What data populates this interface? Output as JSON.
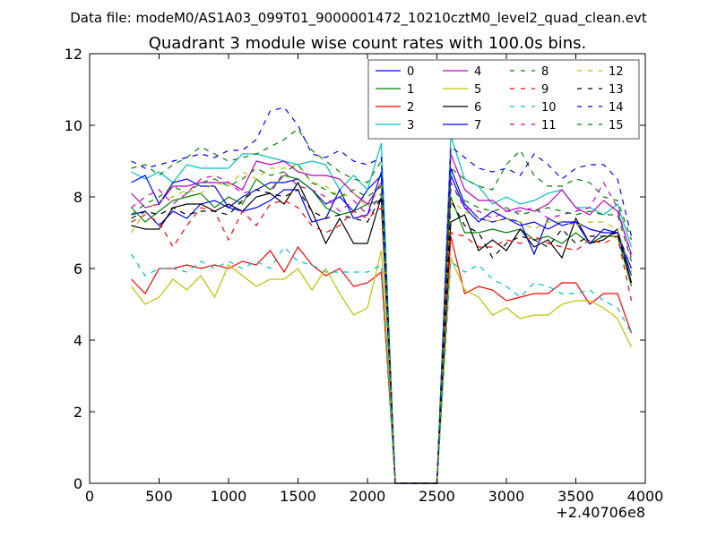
{
  "file_label": "Data file: modeM0/AS1A03_099T01_9000001472_10210cztM0_level2_quad_clean.evt",
  "chart_data": {
    "type": "line",
    "title": "Quadrant 3 module wise count rates with 100.0s bins.",
    "xlabel": "",
    "ylabel": "",
    "x_offset_label": "+2.40706e8",
    "xlim": [
      0,
      4000
    ],
    "ylim": [
      0,
      12
    ],
    "xticks": [
      0,
      500,
      1000,
      1500,
      2000,
      2500,
      3000,
      3500,
      4000
    ],
    "yticks": [
      0,
      2,
      4,
      6,
      8,
      10,
      12
    ],
    "grid": false,
    "legend_position": "top-right",
    "legend_columns": 4,
    "x": [
      300,
      400,
      500,
      600,
      700,
      800,
      900,
      1000,
      1100,
      1200,
      1300,
      1400,
      1500,
      1600,
      1700,
      1800,
      1900,
      2000,
      2100,
      2200,
      2300,
      2400,
      2500,
      2600,
      2700,
      2800,
      2900,
      3000,
      3100,
      3200,
      3300,
      3400,
      3500,
      3600,
      3700,
      3800,
      3900
    ],
    "series": [
      {
        "name": "0",
        "color": "#0000ff",
        "dash": "solid",
        "values": [
          7.5,
          7.6,
          7.2,
          7.6,
          7.4,
          7.8,
          7.9,
          7.7,
          8.0,
          8.2,
          8.4,
          8.4,
          8.5,
          8.2,
          7.8,
          8.0,
          7.6,
          8.2,
          8.6,
          0,
          0,
          0,
          0,
          8.8,
          7.8,
          7.4,
          7.3,
          7.4,
          7.2,
          7.3,
          7.1,
          7.3,
          7.3,
          7.1,
          7.0,
          7.0,
          6.0
        ]
      },
      {
        "name": "1",
        "color": "#008000",
        "dash": "solid",
        "values": [
          7.7,
          7.3,
          7.6,
          7.9,
          8.0,
          8.1,
          7.7,
          8.0,
          7.8,
          8.5,
          8.2,
          8.6,
          8.5,
          8.2,
          7.7,
          7.5,
          7.6,
          7.8,
          7.9,
          0,
          0,
          0,
          0,
          8.0,
          7.0,
          7.0,
          7.1,
          7.0,
          7.1,
          6.8,
          6.9,
          6.7,
          7.0,
          6.7,
          6.9,
          6.9,
          5.5
        ]
      },
      {
        "name": "2",
        "color": "#ff0000",
        "dash": "solid",
        "values": [
          5.7,
          5.3,
          6.0,
          6.0,
          6.1,
          6.0,
          6.1,
          6.0,
          6.2,
          6.1,
          6.5,
          5.9,
          6.6,
          6.1,
          5.8,
          6.0,
          5.5,
          5.6,
          5.9,
          0,
          0,
          0,
          0,
          6.9,
          5.3,
          5.5,
          5.4,
          5.1,
          5.2,
          5.3,
          5.3,
          5.6,
          5.6,
          5.0,
          5.3,
          5.3,
          4.2
        ]
      },
      {
        "name": "3",
        "color": "#00bfbf",
        "dash": "solid",
        "values": [
          8.7,
          8.5,
          8.7,
          8.4,
          8.9,
          8.8,
          8.8,
          8.8,
          9.2,
          9.2,
          9.1,
          9.0,
          8.9,
          9.0,
          8.9,
          8.2,
          8.6,
          8.2,
          9.5,
          0,
          0,
          0,
          0,
          9.7,
          8.5,
          8.3,
          7.8,
          8.0,
          7.8,
          7.9,
          8.1,
          8.2,
          7.7,
          7.7,
          7.5,
          7.8,
          6.6
        ]
      },
      {
        "name": "4",
        "color": "#bf00bf",
        "dash": "solid",
        "values": [
          8.1,
          7.7,
          7.8,
          8.3,
          8.3,
          8.4,
          8.4,
          8.4,
          8.2,
          9.0,
          8.9,
          9.0,
          8.7,
          8.6,
          8.6,
          8.5,
          8.1,
          7.8,
          8.4,
          0,
          0,
          0,
          0,
          9.2,
          8.2,
          7.9,
          7.9,
          7.6,
          7.7,
          7.6,
          7.8,
          8.2,
          7.7,
          7.5,
          7.9,
          7.6,
          6.4
        ]
      },
      {
        "name": "5",
        "color": "#bfbf00",
        "dash": "solid",
        "values": [
          5.5,
          5.0,
          5.2,
          5.7,
          5.4,
          5.8,
          5.2,
          6.1,
          5.8,
          5.5,
          5.7,
          5.7,
          6.0,
          5.4,
          6.0,
          5.3,
          4.7,
          4.9,
          6.5,
          0,
          0,
          0,
          0,
          6.3,
          5.4,
          5.2,
          4.7,
          4.9,
          4.6,
          4.7,
          4.7,
          5.0,
          5.1,
          5.1,
          4.9,
          4.6,
          3.8
        ]
      },
      {
        "name": "6",
        "color": "#000000",
        "dash": "solid",
        "values": [
          7.2,
          7.1,
          7.1,
          7.7,
          7.8,
          7.8,
          7.6,
          7.8,
          7.6,
          8.0,
          8.1,
          7.8,
          8.4,
          7.6,
          6.7,
          7.4,
          6.7,
          6.7,
          8.0,
          0,
          0,
          0,
          0,
          7.3,
          7.5,
          6.5,
          6.8,
          6.5,
          7.1,
          6.6,
          6.8,
          6.3,
          7.4,
          6.7,
          6.8,
          7.1,
          5.6
        ]
      },
      {
        "name": "7",
        "color": "#0000ff",
        "dash": "solid",
        "values": [
          8.4,
          8.6,
          7.8,
          8.4,
          8.5,
          8.3,
          8.3,
          7.7,
          7.6,
          7.7,
          7.9,
          8.2,
          8.2,
          7.3,
          7.4,
          8.2,
          7.4,
          7.5,
          8.7,
          0,
          0,
          0,
          0,
          8.6,
          7.7,
          7.3,
          7.6,
          7.4,
          7.3,
          6.4,
          7.4,
          7.2,
          7.3,
          6.7,
          7.1,
          7.0,
          5.8
        ]
      },
      {
        "name": "8",
        "color": "#008000",
        "dash": "dashed",
        "values": [
          8.8,
          8.9,
          8.6,
          8.9,
          9.1,
          9.4,
          9.2,
          9.0,
          9.1,
          9.2,
          9.4,
          9.6,
          9.9,
          9.3,
          9.0,
          8.7,
          8.5,
          8.4,
          9.0,
          0,
          0,
          0,
          0,
          8.8,
          8.5,
          8.3,
          8.2,
          8.9,
          9.3,
          8.6,
          8.3,
          8.3,
          8.5,
          8.4,
          8.0,
          7.9,
          6.8
        ]
      },
      {
        "name": "9",
        "color": "#ff0000",
        "dash": "dashed",
        "values": [
          7.3,
          7.5,
          7.3,
          6.6,
          7.2,
          7.7,
          7.6,
          6.8,
          7.6,
          7.2,
          7.8,
          7.9,
          7.7,
          7.2,
          7.0,
          7.2,
          7.6,
          7.4,
          7.7,
          0,
          0,
          0,
          0,
          7.0,
          6.9,
          6.6,
          6.6,
          6.8,
          6.7,
          6.9,
          6.7,
          6.6,
          6.5,
          6.8,
          6.7,
          6.9,
          5.1
        ]
      },
      {
        "name": "10",
        "color": "#00bfbf",
        "dash": "dashed",
        "values": [
          6.4,
          5.8,
          6.0,
          6.0,
          5.9,
          6.2,
          6.0,
          6.2,
          6.0,
          6.2,
          6.0,
          6.6,
          6.2,
          6.1,
          5.9,
          5.9,
          5.9,
          5.9,
          6.1,
          0,
          0,
          0,
          0,
          6.2,
          5.9,
          6.1,
          5.7,
          5.5,
          5.2,
          5.6,
          5.5,
          5.3,
          5.3,
          5.4,
          5.1,
          4.9,
          4.2
        ]
      },
      {
        "name": "11",
        "color": "#bf00bf",
        "dash": "dashed",
        "values": [
          7.7,
          8.0,
          8.2,
          7.8,
          8.1,
          8.5,
          8.6,
          8.4,
          8.1,
          8.2,
          8.1,
          8.7,
          8.3,
          8.2,
          8.0,
          7.6,
          7.9,
          7.5,
          8.1,
          0,
          0,
          0,
          0,
          8.4,
          7.7,
          7.6,
          7.4,
          7.6,
          7.6,
          7.7,
          7.4,
          7.5,
          7.6,
          7.7,
          8.4,
          7.7,
          6.3
        ]
      },
      {
        "name": "12",
        "color": "#bfbf00",
        "dash": "dashed",
        "values": [
          7.0,
          7.6,
          7.9,
          8.0,
          8.2,
          8.1,
          8.4,
          8.3,
          8.7,
          8.5,
          8.8,
          8.8,
          8.9,
          8.4,
          8.3,
          8.0,
          8.1,
          7.7,
          8.3,
          0,
          0,
          0,
          0,
          7.9,
          7.6,
          7.4,
          7.3,
          7.4,
          7.3,
          7.1,
          7.3,
          7.3,
          7.2,
          7.3,
          7.3,
          7.1,
          5.9
        ]
      },
      {
        "name": "13",
        "color": "#000000",
        "dash": "dashed",
        "values": [
          7.4,
          7.6,
          7.5,
          7.7,
          7.5,
          7.6,
          7.6,
          7.5,
          7.9,
          8.2,
          8.1,
          8.0,
          8.2,
          7.6,
          7.4,
          7.5,
          7.4,
          7.3,
          8.0,
          0,
          0,
          0,
          0,
          7.9,
          7.2,
          7.0,
          6.3,
          6.7,
          6.9,
          6.8,
          6.6,
          7.1,
          6.7,
          6.9,
          6.9,
          7.0,
          5.6
        ]
      },
      {
        "name": "14",
        "color": "#0000ff",
        "dash": "dashed",
        "values": [
          9.0,
          8.8,
          8.9,
          9.0,
          9.1,
          9.2,
          9.1,
          9.3,
          9.3,
          9.6,
          10.4,
          10.5,
          10.0,
          9.2,
          9.1,
          9.3,
          9.0,
          8.9,
          9.1,
          0,
          0,
          0,
          0,
          9.4,
          9.1,
          8.8,
          8.7,
          8.8,
          8.6,
          9.2,
          8.9,
          8.5,
          8.8,
          8.9,
          8.9,
          8.5,
          6.9
        ]
      },
      {
        "name": "15",
        "color": "#008000",
        "dash": "dashed",
        "values": [
          7.5,
          7.8,
          8.0,
          8.3,
          8.1,
          8.4,
          8.5,
          8.3,
          8.5,
          8.8,
          8.6,
          8.7,
          8.9,
          8.4,
          8.2,
          8.0,
          8.2,
          8.0,
          8.3,
          0,
          0,
          0,
          0,
          8.2,
          7.9,
          7.7,
          7.6,
          7.7,
          7.5,
          7.6,
          7.7,
          7.6,
          7.5,
          7.6,
          7.5,
          7.5,
          6.2
        ]
      }
    ]
  }
}
